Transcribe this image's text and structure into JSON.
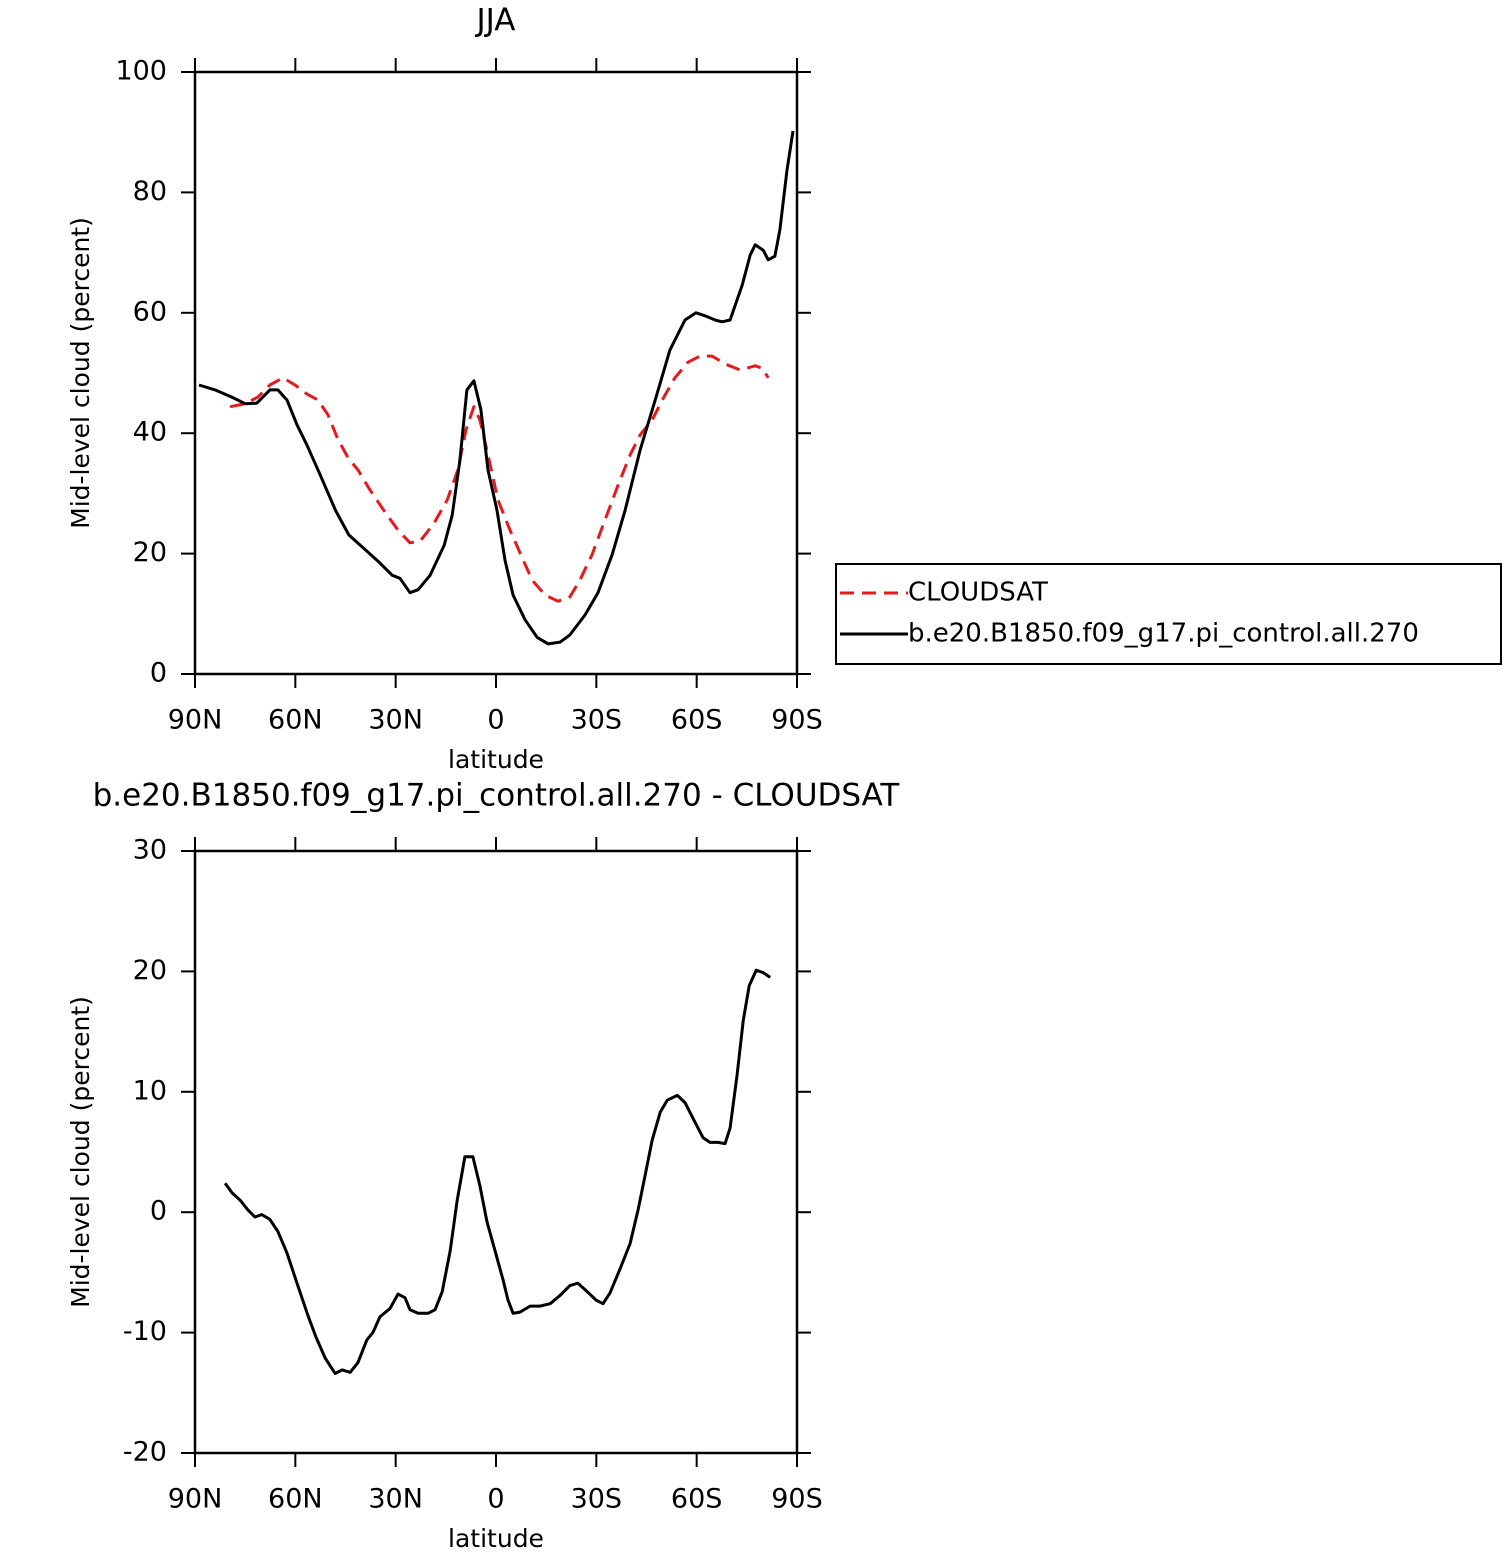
{
  "chart_data": [
    {
      "type": "line",
      "title": "JJA",
      "xlabel": "latitude",
      "ylabel": "Mid-level cloud (percent)",
      "xlim": [
        90,
        -90
      ],
      "ylim": [
        0,
        100
      ],
      "xticks": [
        {
          "value": 90,
          "label": "90N"
        },
        {
          "value": 60,
          "label": "60N"
        },
        {
          "value": 30,
          "label": "30N"
        },
        0,
        {
          "value": -30,
          "label": "30S"
        },
        {
          "value": -60,
          "label": "60S"
        },
        {
          "value": -90,
          "label": "90S"
        }
      ],
      "yticks": [
        0,
        20,
        40,
        60,
        80,
        100
      ],
      "legend": "right",
      "series": [
        {
          "name": "CLOUDSAT",
          "color": "#e41a1c",
          "dash": true,
          "x": [
            79.5,
            75,
            71.2,
            67.6,
            63.7,
            60.1,
            56.5,
            53.2,
            50.2,
            47.2,
            44.2,
            41.3,
            37.7,
            33.2,
            29.3,
            25.7,
            22.7,
            18.8,
            14.6,
            11.4,
            9.0,
            6.6,
            4.8,
            2.4,
            -0.6,
            -4.2,
            -7.2,
            -10.8,
            -14.7,
            -18.5,
            -22.1,
            -25.1,
            -28.7,
            -32.6,
            -36.5,
            -40.1,
            -43.1,
            -46.7,
            -49.7,
            -53.5,
            -57.4,
            -61.0,
            -64.6,
            -68.5,
            -73.0,
            -77.5,
            -79.6,
            -81.4
          ],
          "values": [
            44.4,
            44.9,
            46.0,
            48.0,
            49.2,
            48.0,
            46.5,
            45.5,
            43.0,
            38.9,
            35.9,
            33.9,
            30.6,
            26.9,
            23.9,
            21.8,
            22.1,
            24.8,
            28.9,
            33.9,
            40.5,
            44.4,
            42.2,
            36.4,
            28.9,
            23.9,
            20.1,
            15.6,
            13.1,
            12.1,
            12.8,
            15.6,
            19.8,
            25.6,
            31.4,
            36.4,
            39.7,
            42.2,
            45.5,
            49.2,
            51.8,
            52.8,
            52.8,
            51.5,
            50.5,
            51.2,
            50.8,
            49.2
          ]
        },
        {
          "name": "b.e20.B1850.f09_g17.pi_control.all.270",
          "color": "#000000",
          "dash": false,
          "x": [
            88.8,
            84,
            79,
            75,
            71.5,
            67.6,
            65.2,
            62.5,
            59.5,
            56.5,
            52.6,
            48,
            44,
            39,
            35,
            31,
            28.7,
            25.7,
            23.3,
            19.7,
            15.5,
            13.1,
            10.8,
            8.7,
            6.6,
            4.5,
            2.4,
            -0.3,
            -2.7,
            -5.1,
            -8.7,
            -12.3,
            -15.6,
            -19.2,
            -22.1,
            -26.6,
            -30.5,
            -34.7,
            -38.6,
            -43.1,
            -47.6,
            -52.0,
            -56.5,
            -59.8,
            -62.5,
            -65.5,
            -67.6,
            -70.0,
            -73.6,
            -76.0,
            -77.5,
            -79.9,
            -81.4,
            -83.4,
            -84.9,
            -87.0,
            -88.8
          ],
          "values": [
            48.0,
            47.2,
            46.0,
            44.9,
            45.0,
            47.2,
            47.2,
            45.5,
            41.4,
            38.0,
            33.1,
            27.2,
            23.1,
            20.6,
            18.6,
            16.4,
            15.9,
            13.5,
            14.0,
            16.4,
            21.4,
            26.4,
            35.5,
            47.2,
            48.7,
            43.9,
            33.9,
            27.2,
            18.9,
            13.1,
            9.0,
            6.1,
            5.0,
            5.3,
            6.5,
            9.8,
            13.5,
            19.8,
            27.2,
            37.2,
            45.5,
            53.8,
            58.8,
            60.0,
            59.5,
            58.8,
            58.5,
            58.8,
            64.6,
            69.6,
            71.3,
            70.4,
            68.8,
            69.4,
            73.8,
            83.7,
            90.2
          ]
        }
      ]
    },
    {
      "type": "line",
      "title": "b.e20.B1850.f09_g17.pi_control.all.270 - CLOUDSAT",
      "xlabel": "latitude",
      "ylabel": "Mid-level cloud (percent)",
      "xlim": [
        90,
        -90
      ],
      "ylim": [
        -20,
        30
      ],
      "xticks": [
        {
          "value": 90,
          "label": "90N"
        },
        {
          "value": 60,
          "label": "60N"
        },
        {
          "value": 30,
          "label": "30N"
        },
        0,
        {
          "value": -30,
          "label": "30S"
        },
        {
          "value": -60,
          "label": "60S"
        },
        {
          "value": -90,
          "label": "90S"
        }
      ],
      "yticks": [
        -20,
        -10,
        0,
        10,
        20,
        30
      ],
      "series": [
        {
          "color": "#000000",
          "dash": false,
          "x": [
            81,
            78.9,
            76.5,
            74.2,
            72.1,
            70,
            67.6,
            65.2,
            62.5,
            59.5,
            56.2,
            53.8,
            51.1,
            48.1,
            46,
            43.6,
            41.3,
            38.6,
            36.8,
            34.7,
            31.7,
            29.3,
            27.2,
            25.7,
            23.3,
            20.3,
            18.2,
            16.1,
            13.7,
            11.6,
            9.3,
            6.9,
            4.8,
            2.7,
            0.3,
            -2.1,
            -3.6,
            -5.1,
            -7.2,
            -10.2,
            -13.2,
            -16.2,
            -19.2,
            -22.1,
            -24.5,
            -26.9,
            -29.9,
            -32,
            -34.1,
            -37.1,
            -40.1,
            -42.5,
            -44.6,
            -46.7,
            -49.1,
            -51.2,
            -54.2,
            -56.5,
            -58.9,
            -61.9,
            -64.0,
            -66.4,
            -68.5,
            -70.0,
            -72.1,
            -73.9,
            -75.7,
            -77.8,
            -79.9,
            -82.0
          ],
          "values": [
            2.4,
            1.6,
            1.0,
            0.2,
            -0.4,
            -0.2,
            -0.6,
            -1.6,
            -3.4,
            -5.9,
            -8.6,
            -10.4,
            -12.1,
            -13.4,
            -13.1,
            -13.3,
            -12.5,
            -10.6,
            -10.0,
            -8.7,
            -8.0,
            -6.8,
            -7.1,
            -8.1,
            -8.4,
            -8.4,
            -8.1,
            -6.6,
            -3.2,
            1.0,
            4.6,
            4.6,
            2.2,
            -0.8,
            -3.2,
            -5.6,
            -7.3,
            -8.4,
            -8.3,
            -7.8,
            -7.8,
            -7.6,
            -6.9,
            -6.1,
            -5.9,
            -6.5,
            -7.3,
            -7.6,
            -6.7,
            -4.7,
            -2.6,
            0.2,
            3.1,
            6.0,
            8.3,
            9.3,
            9.7,
            9.1,
            7.8,
            6.2,
            5.8,
            5.8,
            5.7,
            7.0,
            11.4,
            15.9,
            18.8,
            20.1,
            19.9,
            19.5
          ]
        }
      ]
    }
  ]
}
